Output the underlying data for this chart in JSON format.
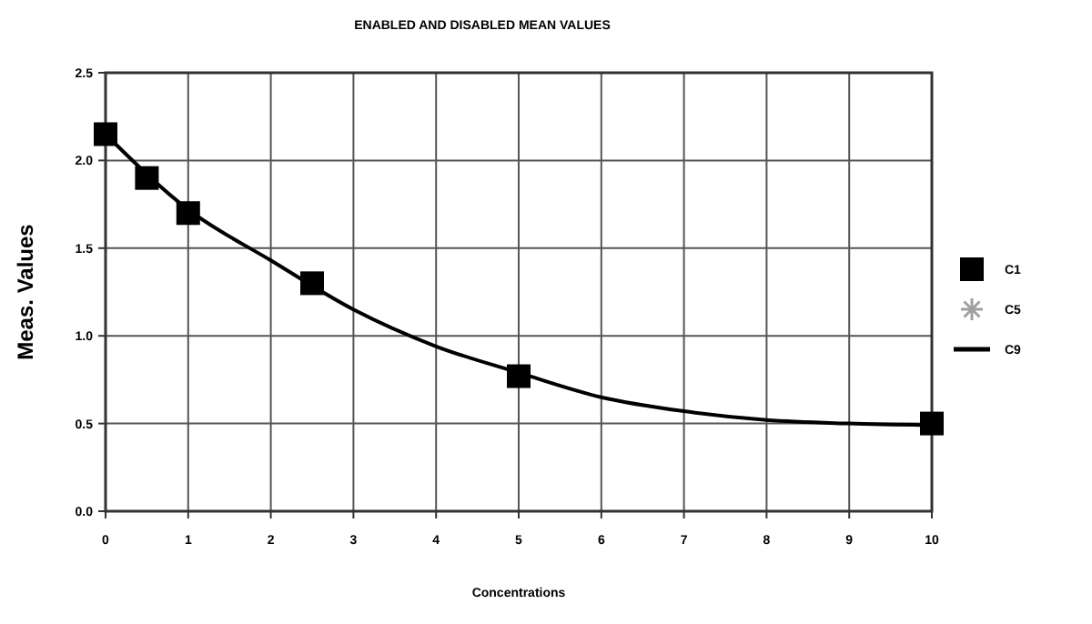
{
  "chart_data": {
    "type": "scatter",
    "title": "ENABLED AND DISABLED MEAN VALUES",
    "xlabel": "Concentrations",
    "ylabel": "Meas. Values",
    "x": [
      0,
      0.5,
      1,
      2.5,
      5,
      10
    ],
    "series": [
      {
        "name": "C1",
        "color": "#000000",
        "marker": "square",
        "values": [
          2.15,
          1.9,
          1.7,
          1.3,
          0.77,
          0.5
        ]
      },
      {
        "name": "C5",
        "color": "#a0a0a0",
        "marker": "star",
        "values": [
          null,
          null,
          null,
          null,
          null,
          null
        ]
      },
      {
        "name": "C9",
        "type": "line",
        "color": "#000000",
        "marker": "none",
        "line_style": "solid",
        "x": [
          0,
          1,
          2,
          3,
          4,
          5,
          6,
          7,
          8,
          9,
          10
        ],
        "values": [
          2.15,
          1.72,
          1.43,
          1.15,
          0.94,
          0.79,
          0.65,
          0.57,
          0.52,
          0.5,
          0.49
        ]
      }
    ],
    "xlim": [
      0,
      10
    ],
    "xticks": [
      0,
      1,
      2,
      3,
      4,
      5,
      6,
      7,
      8,
      9,
      10
    ],
    "ylim": [
      0,
      2.5
    ],
    "yticks": [
      {
        "value": 0,
        "label": "0.0"
      },
      {
        "value": 0.5,
        "label": "0.5"
      },
      {
        "value": 1,
        "label": "1.0"
      },
      {
        "value": 1.5,
        "label": "1.5"
      },
      {
        "value": 2,
        "label": "2.0"
      },
      {
        "value": 2.5,
        "label": "2.5"
      }
    ],
    "grid": true,
    "legend": "right"
  }
}
